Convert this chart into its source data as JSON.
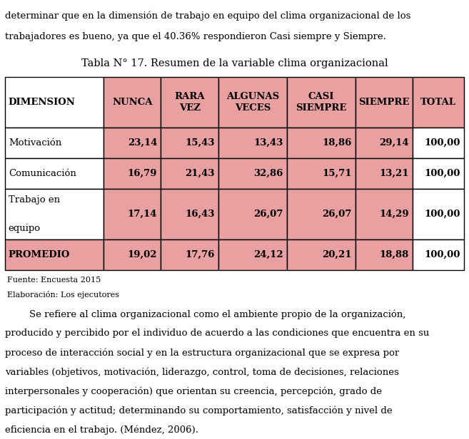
{
  "title": "Tabla N° 17. Resumen de la variable clima organizacional",
  "columns": [
    "DIMENSION",
    "NUNCA",
    "RARA\nVEZ",
    "ALGUNAS\nVECES",
    "CASI\nSIEMPRE",
    "SIEMPRE",
    "TOTAL"
  ],
  "rows": [
    [
      "Motivación",
      "23,14",
      "15,43",
      "13,43",
      "18,86",
      "29,14",
      "100,00"
    ],
    [
      "Comunicación",
      "16,79",
      "21,43",
      "32,86",
      "15,71",
      "13,21",
      "100,00"
    ],
    [
      "Trabajo en\nequipo",
      "17,14",
      "16,43",
      "26,07",
      "26,07",
      "14,29",
      "100,00"
    ],
    [
      "PROMEDIO",
      "19,02",
      "17,76",
      "24,12",
      "20,21",
      "18,88",
      "100,00"
    ]
  ],
  "footer": [
    "Fuente: Encuesta 2015",
    "Elaboración: Los ejecutores"
  ],
  "above_text": [
    "determinar que en la dimensión de trabajo en equipo del clima organizacional de los",
    "trabajadores es bueno, ya que el 40.36% respondieron Casi siempre y Siempre."
  ],
  "below_text": [
    "        Se refiere al clima organizacional como el ambiente propio de la organización,",
    "producido y percibido por el individuo de acuerdo a las condiciones que encuentra en su",
    "proceso de interacción social y en la estructura organizacional que se expresa por",
    "variables (objetivos, motivación, liderazgo, control, toma de decisiones, relaciones",
    "interpersonales y cooperación) que orientan su creencia, percepción, grado de",
    "participación y actitud; determinando su comportamiento, satisfacción y nivel de",
    "eficiencia en el trabajo. (Méndez, 2006)."
  ],
  "header_bg": "#E8A0A0",
  "promedio_bg": "#E8A0A0",
  "normal_bg": "#FFFFFF",
  "border_color": "#000000",
  "text_color": "#000000",
  "title_fontsize": 10.5,
  "header_fontsize": 9.5,
  "cell_fontsize": 9.5,
  "footer_fontsize": 8,
  "body_fontsize": 9.5
}
